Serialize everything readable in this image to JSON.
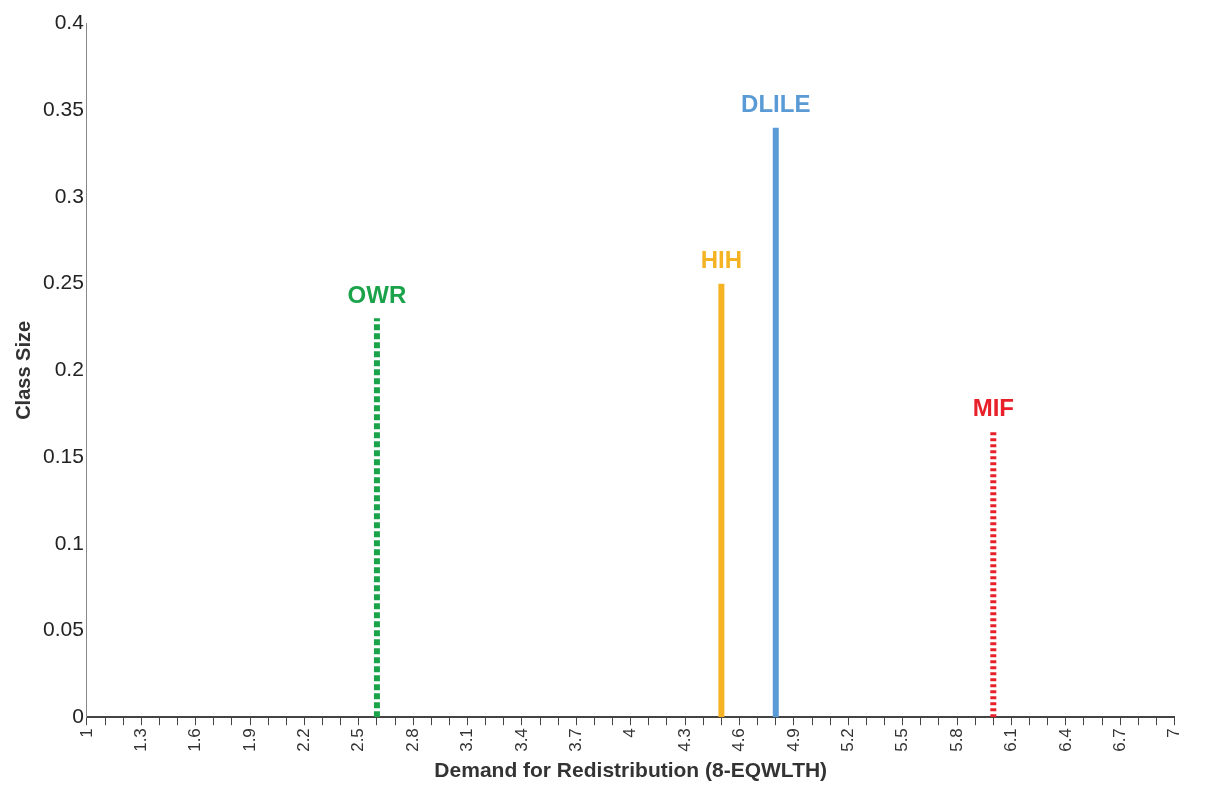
{
  "chart_data": {
    "type": "line",
    "xlabel": "Demand for Redistribution (8-EQWLTH)",
    "ylabel": "Class Size",
    "series": [
      {
        "name": "OWR",
        "color": "#1aa34a",
        "x": [
          2.6,
          2.6
        ],
        "values": [
          0,
          0.23
        ],
        "line_style": "dashed"
      },
      {
        "name": "HIH",
        "color": "#f5b324",
        "x": [
          4.5,
          4.5
        ],
        "values": [
          0,
          0.25
        ],
        "line_style": "solid"
      },
      {
        "name": "DLILE",
        "color": "#5b9bd5",
        "x": [
          4.8,
          4.8
        ],
        "values": [
          0,
          0.34
        ],
        "line_style": "solid"
      },
      {
        "name": "MIF",
        "color": "#e8202a",
        "x": [
          6,
          6
        ],
        "values": [
          0,
          0.165
        ],
        "line_style": "dotted"
      }
    ],
    "xlim": [
      1,
      7
    ],
    "xticks": [
      1,
      {
        "value": 1.1,
        "label": null
      },
      {
        "value": 1.2,
        "label": null
      },
      1.3,
      {
        "value": 1.4,
        "label": null
      },
      {
        "value": 1.5,
        "label": null
      },
      1.6,
      {
        "value": 1.7,
        "label": null
      },
      {
        "value": 1.8,
        "label": null
      },
      1.9,
      {
        "value": 2,
        "label": null
      },
      {
        "value": 2.1,
        "label": null
      },
      2.2,
      {
        "value": 2.3,
        "label": null
      },
      {
        "value": 2.4,
        "label": null
      },
      2.5,
      {
        "value": 2.6,
        "label": null
      },
      {
        "value": 2.7,
        "label": null
      },
      2.8,
      {
        "value": 2.9,
        "label": null
      },
      {
        "value": 3,
        "label": null
      },
      3.1,
      {
        "value": 3.2,
        "label": null
      },
      {
        "value": 3.3,
        "label": null
      },
      3.4,
      {
        "value": 3.5,
        "label": null
      },
      {
        "value": 3.6,
        "label": null
      },
      3.7,
      {
        "value": 3.8,
        "label": null
      },
      {
        "value": 3.9,
        "label": null
      },
      4,
      {
        "value": 4.1,
        "label": null
      },
      {
        "value": 4.2,
        "label": null
      },
      4.3,
      {
        "value": 4.4,
        "label": null
      },
      {
        "value": 4.5,
        "label": null
      },
      4.6,
      {
        "value": 4.7,
        "label": null
      },
      {
        "value": 4.8,
        "label": null
      },
      4.9,
      {
        "value": 5,
        "label": null
      },
      {
        "value": 5.1,
        "label": null
      },
      5.2,
      {
        "value": 5.3,
        "label": null
      },
      {
        "value": 5.4,
        "label": null
      },
      5.5,
      {
        "value": 5.6,
        "label": null
      },
      {
        "value": 5.7,
        "label": null
      },
      5.8,
      {
        "value": 5.9,
        "label": null
      },
      {
        "value": 6,
        "label": null
      },
      6.1,
      {
        "value": 6.2,
        "label": null
      },
      {
        "value": 6.3,
        "label": null
      },
      6.4,
      {
        "value": 6.5,
        "label": null
      },
      {
        "value": 6.6,
        "label": null
      },
      6.7,
      {
        "value": 6.8,
        "label": null
      },
      {
        "value": 6.9,
        "label": null
      },
      7
    ],
    "ylim": [
      0,
      0.4
    ],
    "yticks": [
      0,
      0.05,
      0.1,
      0.15,
      0.2,
      0.25,
      0.3,
      0.35,
      0.4
    ],
    "marker": "none",
    "legend": false,
    "grid": false
  }
}
